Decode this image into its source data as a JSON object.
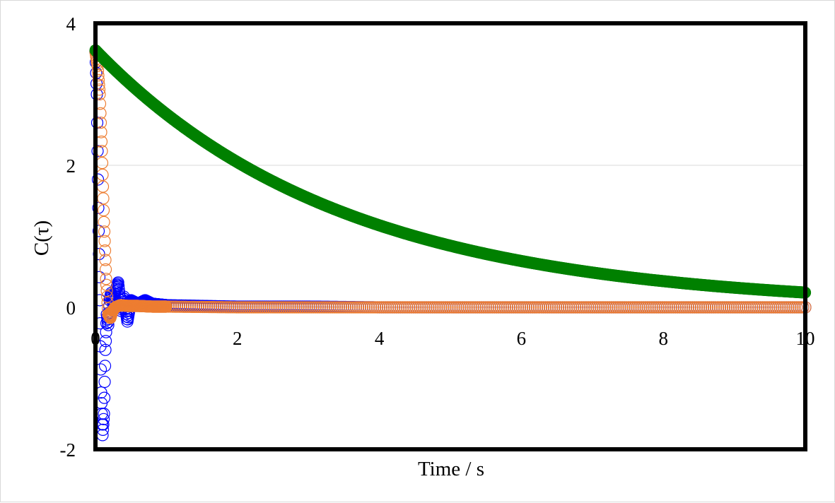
{
  "chart_data": {
    "type": "scatter",
    "xlabel": "Time / s",
    "ylabel": "C(τ)",
    "xlim": [
      0,
      10
    ],
    "ylim": [
      -2,
      4
    ],
    "x_ticks": [
      0,
      2,
      4,
      6,
      8,
      10
    ],
    "y_ticks": [
      -2,
      0,
      2,
      4
    ],
    "x_tick_labels": [
      "0",
      "2",
      "4",
      "6",
      "8",
      "10"
    ],
    "y_tick_labels": [
      "-2",
      "0",
      "2",
      "4"
    ],
    "grid": "horizontal at y=2",
    "legend": "none",
    "series": [
      {
        "color": "#0000ff",
        "marker": "open-circle",
        "points": [
          [
            0.0,
            3.6
          ],
          [
            0.02,
            3.0
          ],
          [
            0.04,
            1.4
          ],
          [
            0.06,
            0.1
          ],
          [
            0.08,
            -1.2
          ],
          [
            0.1,
            -1.8
          ],
          [
            0.12,
            -1.5
          ],
          [
            0.14,
            -0.6
          ],
          [
            0.16,
            -0.1
          ],
          [
            0.18,
            -0.25
          ],
          [
            0.2,
            0.1
          ],
          [
            0.22,
            0.2
          ],
          [
            0.25,
            0.05
          ],
          [
            0.28,
            0.22
          ],
          [
            0.32,
            0.35
          ],
          [
            0.36,
            -0.05
          ],
          [
            0.4,
            0.15
          ],
          [
            0.45,
            -0.2
          ],
          [
            0.5,
            0.1
          ],
          [
            0.6,
            0.05
          ],
          [
            0.7,
            0.1
          ],
          [
            0.8,
            0.05
          ],
          [
            1.0,
            0.03
          ],
          [
            1.5,
            0.02
          ],
          [
            2.0,
            0.01
          ],
          [
            3.0,
            0.01
          ],
          [
            4.0,
            0.0
          ],
          [
            5.0,
            0.0
          ],
          [
            6.0,
            0.0
          ],
          [
            7.0,
            0.0
          ],
          [
            8.0,
            0.0
          ],
          [
            9.0,
            0.0
          ],
          [
            10.0,
            0.0
          ]
        ]
      },
      {
        "color": "#ed7d31",
        "marker": "open-circle",
        "points": [
          [
            0.0,
            3.6
          ],
          [
            0.03,
            3.4
          ],
          [
            0.06,
            3.0
          ],
          [
            0.09,
            2.2
          ],
          [
            0.12,
            1.2
          ],
          [
            0.15,
            0.4
          ],
          [
            0.18,
            -0.1
          ],
          [
            0.21,
            -0.15
          ],
          [
            0.24,
            -0.05
          ],
          [
            0.28,
            0.0
          ],
          [
            0.35,
            0.03
          ],
          [
            0.45,
            0.02
          ],
          [
            0.6,
            0.02
          ],
          [
            0.8,
            0.01
          ],
          [
            1.0,
            0.01
          ],
          [
            2.0,
            0.0
          ],
          [
            3.0,
            0.0
          ],
          [
            4.0,
            0.0
          ],
          [
            5.0,
            0.0
          ],
          [
            6.0,
            0.0
          ],
          [
            7.0,
            0.0
          ],
          [
            8.0,
            0.0
          ],
          [
            9.0,
            0.0
          ],
          [
            10.0,
            0.0
          ]
        ]
      },
      {
        "color": "#008000",
        "marker": "filled-circle",
        "y0": 3.62,
        "decay_time": 3.5,
        "x_start": 0,
        "x_end": 10
      }
    ]
  }
}
